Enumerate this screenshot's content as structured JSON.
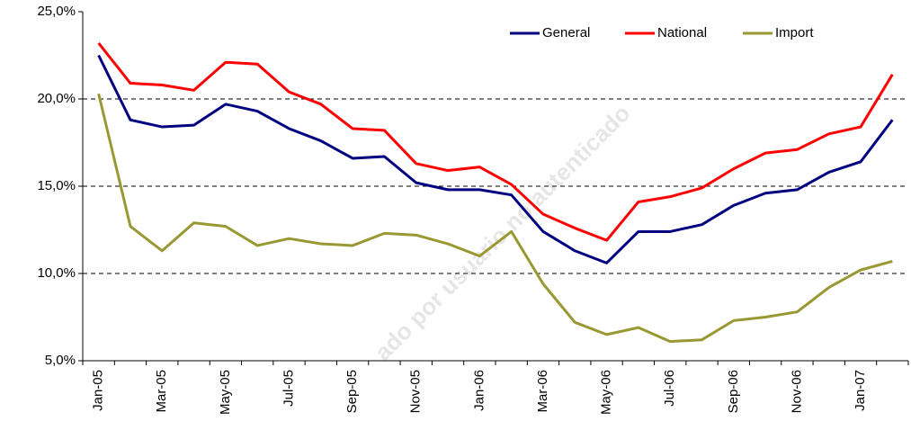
{
  "chart_data": {
    "type": "line",
    "categories": [
      "Jan-05",
      null,
      "Mar-05",
      null,
      "May-05",
      null,
      "Jul-05",
      null,
      "Sep-05",
      null,
      "Nov-05",
      null,
      "Jan-06",
      null,
      "Mar-06",
      null,
      "May-06",
      null,
      "Jul-06",
      null,
      "Sep-06",
      null,
      "Nov-06",
      null,
      "Jan-07",
      null
    ],
    "series": [
      {
        "name": "General",
        "color": "#000080",
        "values": [
          22.5,
          18.8,
          18.4,
          18.5,
          19.7,
          19.3,
          18.3,
          17.6,
          16.6,
          16.7,
          15.2,
          14.8,
          14.8,
          14.5,
          12.4,
          11.3,
          10.6,
          12.4,
          12.4,
          12.8,
          13.9,
          14.6,
          14.8,
          15.8,
          16.4,
          18.8
        ]
      },
      {
        "name": "National",
        "color": "#ff0000",
        "values": [
          23.2,
          20.9,
          20.8,
          20.5,
          22.1,
          22.0,
          20.4,
          19.7,
          18.3,
          18.2,
          16.3,
          15.9,
          16.1,
          15.1,
          13.4,
          12.6,
          11.9,
          14.1,
          14.4,
          14.9,
          16.0,
          16.9,
          17.1,
          18.0,
          18.4,
          21.4
        ]
      },
      {
        "name": "Import",
        "color": "#999933",
        "values": [
          20.3,
          12.7,
          11.3,
          12.9,
          12.7,
          11.6,
          12.0,
          11.7,
          11.6,
          12.3,
          12.2,
          11.7,
          11.0,
          12.4,
          9.4,
          7.2,
          6.5,
          6.9,
          6.1,
          6.2,
          7.3,
          7.5,
          7.8,
          9.2,
          10.2,
          10.7
        ]
      }
    ],
    "ylim": [
      5,
      25
    ],
    "yticks": [
      {
        "value": 5,
        "label": "5,0%"
      },
      {
        "value": 10,
        "label": "10,0%"
      },
      {
        "value": 15,
        "label": "15,0%"
      },
      {
        "value": 20,
        "label": "20,0%"
      },
      {
        "value": 25,
        "label": "25,0%"
      }
    ],
    "grid": true,
    "legend": "top-right",
    "watermark": "ado por usuario no autenticado"
  }
}
